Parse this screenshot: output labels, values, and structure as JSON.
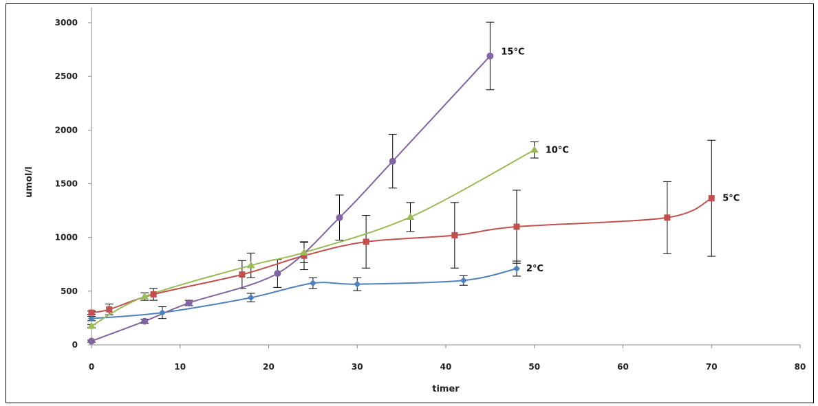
{
  "chart_data": {
    "type": "line",
    "title": "",
    "xlabel": "timer",
    "ylabel": "umol/l",
    "xlim": [
      0,
      80
    ],
    "ylim": [
      0,
      3000
    ],
    "xticks": [
      0,
      10,
      20,
      30,
      40,
      50,
      60,
      70,
      80
    ],
    "yticks": [
      0,
      500,
      1000,
      1500,
      2000,
      2500,
      3000
    ],
    "grid": false,
    "legend": "inline labels at series ends",
    "series": [
      {
        "name": "2°C",
        "color": "#4F81BD",
        "marker": "diamond",
        "x": [
          0,
          8,
          18,
          25,
          30,
          42,
          48
        ],
        "y": [
          245,
          300,
          440,
          575,
          565,
          600,
          710
        ],
        "err": [
          20,
          55,
          40,
          50,
          60,
          45,
          70
        ]
      },
      {
        "name": "5°C",
        "color": "#C0504D",
        "marker": "square",
        "x": [
          0,
          2,
          7,
          17,
          24,
          31,
          41,
          48,
          65,
          70
        ],
        "y": [
          300,
          330,
          470,
          655,
          830,
          960,
          1020,
          1100,
          1185,
          1365
        ],
        "err": [
          15,
          50,
          55,
          130,
          130,
          245,
          305,
          340,
          335,
          540
        ]
      },
      {
        "name": "10°C",
        "color": "#9BBB59",
        "marker": "triangle",
        "x": [
          0,
          6,
          18,
          24,
          36,
          50
        ],
        "y": [
          175,
          450,
          740,
          860,
          1190,
          1815
        ],
        "err": [
          15,
          35,
          115,
          95,
          135,
          75
        ]
      },
      {
        "name": "15°C",
        "color": "#8064A2",
        "marker": "circle",
        "x": [
          0,
          6,
          11,
          21,
          28,
          34,
          45
        ],
        "y": [
          35,
          220,
          390,
          665,
          1185,
          1710,
          2690
        ],
        "err": [
          10,
          20,
          25,
          130,
          210,
          250,
          315
        ]
      }
    ]
  }
}
